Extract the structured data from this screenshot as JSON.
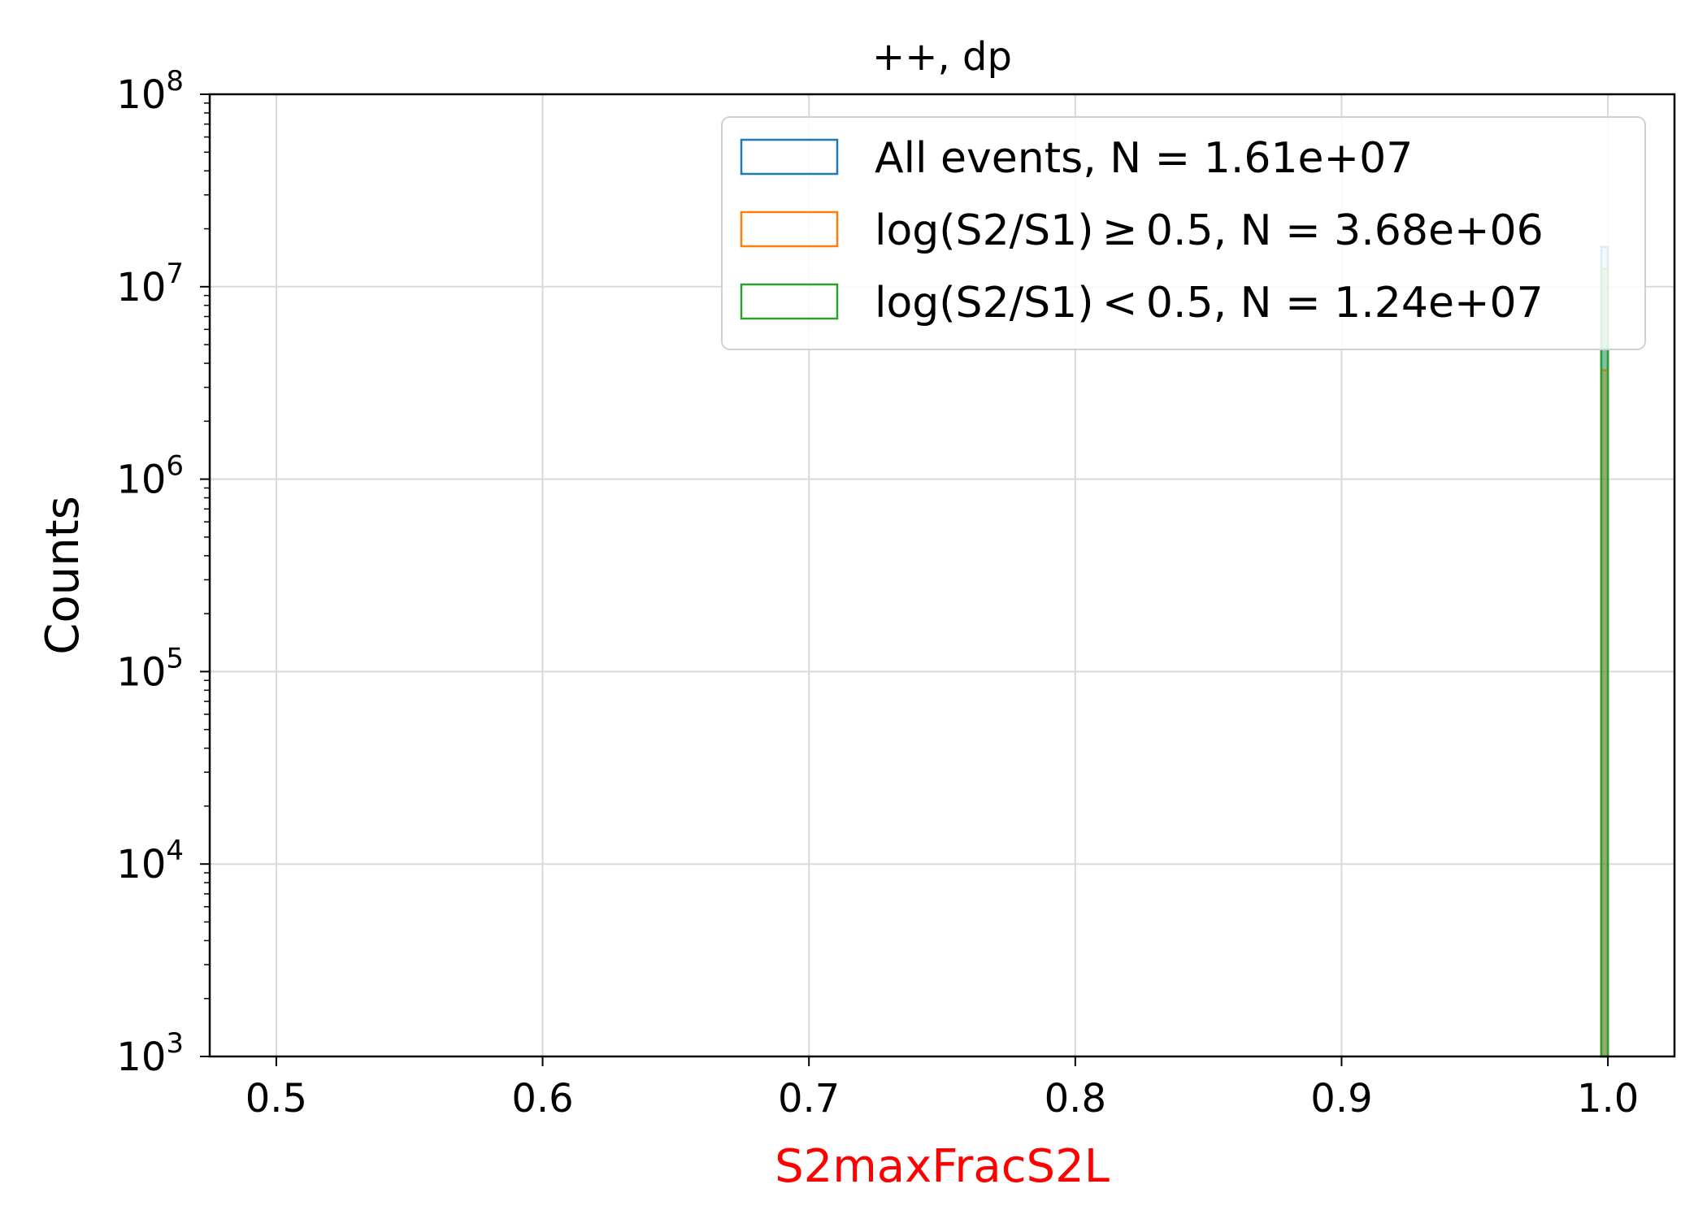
{
  "chart_data": {
    "type": "histogram",
    "title": "++, dp",
    "xlabel": "S2maxFracS2L",
    "ylabel": "Counts",
    "xlim": [
      0.475,
      1.025
    ],
    "ylim": [
      1000,
      100000000
    ],
    "yscale": "log",
    "grid": true,
    "legend_position": "top-right",
    "x_ticks": [
      "0.5",
      "0.6",
      "0.7",
      "0.8",
      "0.9",
      "1.0"
    ],
    "y_ticks": [
      {
        "base": "10",
        "exp": "3"
      },
      {
        "base": "10",
        "exp": "4"
      },
      {
        "base": "10",
        "exp": "5"
      },
      {
        "base": "10",
        "exp": "6"
      },
      {
        "base": "10",
        "exp": "7"
      },
      {
        "base": "10",
        "exp": "8"
      }
    ],
    "x_tick_values": [
      0.5,
      0.6,
      0.7,
      0.8,
      0.9,
      1.0
    ],
    "y_tick_values": [
      1000,
      10000,
      100000,
      1000000,
      10000000,
      100000000
    ],
    "series": [
      {
        "name": "All events, N = 1.61e+07",
        "color": "#1f77b4",
        "bins": [
          {
            "x0": 0.9975,
            "x1": 1.0,
            "count": 16100000
          }
        ]
      },
      {
        "name": "log(S2/S1) ≥ 0.5, N = 3.68e+06",
        "color": "#ff7f0e",
        "bins": [
          {
            "x0": 0.9975,
            "x1": 1.0,
            "count": 3680000
          }
        ]
      },
      {
        "name": "log(S2/S1) < 0.5, N = 1.24e+07",
        "color": "#2ca02c",
        "bins": [
          {
            "x0": 0.9975,
            "x1": 1.0,
            "count": 12400000
          }
        ]
      }
    ]
  }
}
